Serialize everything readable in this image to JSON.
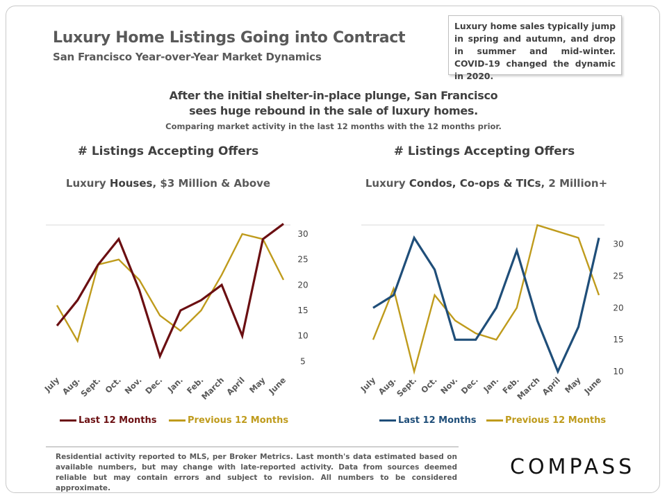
{
  "header": {
    "title": "Luxury Home Listings Going into Contract",
    "subtitle": "San Francisco  Year-over-Year  Market  Dynamics"
  },
  "note": "Luxury home sales typically jump in spring and autumn, and drop in summer and mid-winter. COVID-19 changed the dynamic in 2020.",
  "headline": {
    "line1": "After the initial shelter-in-place plunge, San Francisco",
    "line2": "sees huge rebound in the sale of luxury homes.",
    "line3": "Comparing market activity in the last 12 months with the 12 months prior."
  },
  "footer": "Residential activity reported to MLS, per Broker Metrics. Last month's data estimated based on available numbers, but may change with late-reported activity. Data from sources deemed reliable but may contain errors and subject to revision. All numbers to be considered approximate.",
  "logo": "COMPASS",
  "colors": {
    "last_houses": "#6b0f12",
    "last_condos": "#1f4e79",
    "previous": "#bf9b1c",
    "axis_text": "#404040"
  },
  "chart_data": [
    {
      "type": "line",
      "title": "# Listings  Accepting  Offers",
      "subtitle_parts": [
        "Luxury ",
        "Houses",
        ", $3 Million & Above"
      ],
      "categories": [
        "July",
        "Aug.",
        "Sept.",
        "Oct.",
        "Nov.",
        "Dec.",
        "Jan.",
        "Feb.",
        "March",
        "April",
        "May",
        "June"
      ],
      "series": [
        {
          "name": "Last 12 Months",
          "values": [
            12,
            17,
            24,
            29,
            19,
            6,
            15,
            17,
            20,
            10,
            29,
            32
          ]
        },
        {
          "name": "Previous 12 Months",
          "values": [
            16,
            9,
            24,
            25,
            21,
            14,
            11,
            15,
            22,
            30,
            29,
            21
          ]
        }
      ],
      "yticks": [
        5,
        10,
        15,
        20,
        25,
        30
      ],
      "ylim": [
        3,
        33
      ],
      "grid": false,
      "legend": "bottom"
    },
    {
      "type": "line",
      "title": "# Listings  Accepting  Offers",
      "subtitle_parts": [
        "Luxury ",
        "Condos, Co-ops & TICs",
        ", 2 Million+"
      ],
      "categories": [
        "July",
        "Aug.",
        "Sept.",
        "Oct.",
        "Nov.",
        "Dec.",
        "Jan.",
        "Feb.",
        "March",
        "April",
        "May",
        "June"
      ],
      "series": [
        {
          "name": "Last 12 Months",
          "values": [
            20,
            22,
            31,
            26,
            15,
            15,
            20,
            29,
            18,
            10,
            17,
            31
          ]
        },
        {
          "name": "Previous 12 Months",
          "values": [
            15,
            23,
            10,
            22,
            18,
            16,
            15,
            20,
            33,
            32,
            31,
            22
          ]
        }
      ],
      "yticks": [
        10,
        15,
        20,
        25,
        30
      ],
      "ylim": [
        10,
        34
      ],
      "grid": false,
      "legend": "bottom"
    }
  ]
}
